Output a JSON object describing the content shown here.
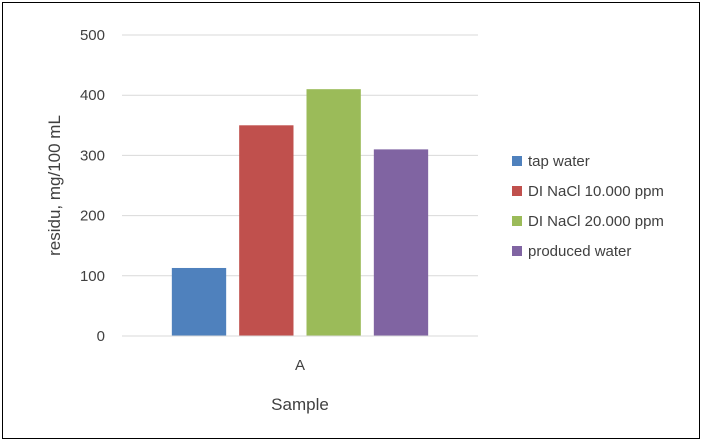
{
  "chart_data": {
    "type": "bar",
    "categories": [
      "A"
    ],
    "series": [
      {
        "name": "tap water",
        "values": [
          113
        ],
        "color": "#4F81BD"
      },
      {
        "name": "DI NaCl 10.000 ppm",
        "values": [
          350
        ],
        "color": "#C0504D"
      },
      {
        "name": "DI NaCl 20.000 ppm",
        "values": [
          410
        ],
        "color": "#9BBB59"
      },
      {
        "name": "produced water",
        "values": [
          310
        ],
        "color": "#8064A2"
      }
    ],
    "title": "",
    "xlabel": "Sample",
    "ylabel": "residu, mg/100 mL",
    "ylim": [
      0,
      500
    ],
    "yticks": [
      0,
      100,
      200,
      300,
      400,
      500
    ],
    "grid": true,
    "legend_position": "right"
  }
}
